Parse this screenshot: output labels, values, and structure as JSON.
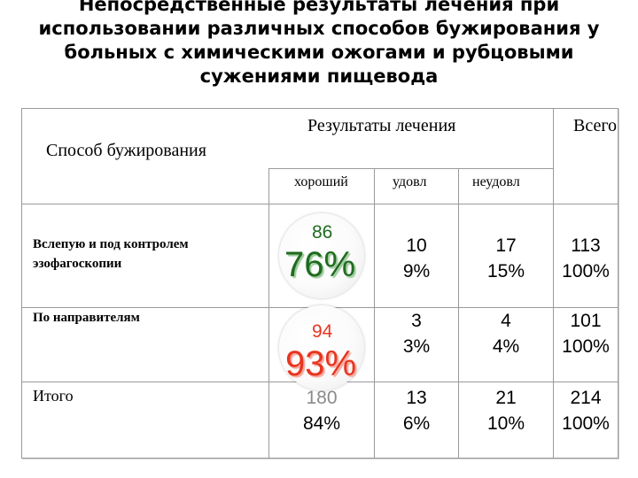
{
  "title": {
    "lines": [
      "Непосредственные результаты лечения при",
      "использовании различных способов бужирования у",
      "больных с химическими ожогами и рубцовыми",
      "сужениями пищевода"
    ]
  },
  "table": {
    "header": {
      "method": "Способ бужирования",
      "results": "Результаты лечения",
      "total": "Всего",
      "good": "хороший",
      "satisfactory": "удовл",
      "unsatisfactory": "неудовл"
    },
    "rows": [
      {
        "label": "Вслепую  и под контролем эзофагоскопии",
        "label_lines": [
          "Вслепую  и под контролем",
          "эзофагоскопии"
        ],
        "good_count": "86",
        "good_percent": "76%",
        "satisfactory_count": "10",
        "satisfactory_percent": "9%",
        "unsatisfactory_count": "17",
        "unsatisfactory_percent": "15%",
        "total_count": "113",
        "total_percent": "100%"
      },
      {
        "label": "По направителям",
        "good_count": "94",
        "good_percent": "93%",
        "satisfactory_count": "3",
        "satisfactory_percent": "3%",
        "unsatisfactory_count": "4",
        "unsatisfactory_percent": "4%",
        "total_count": "101",
        "total_percent": "100%"
      },
      {
        "label": "Итого",
        "good_count": "180",
        "good_percent": "84%",
        "satisfactory_count": "13",
        "satisfactory_percent": "6%",
        "unsatisfactory_count": "21",
        "unsatisfactory_percent": "10%",
        "total_count": "214",
        "total_percent": "100%"
      }
    ]
  },
  "colors": {
    "highlight_green": "#1f6b1f",
    "highlight_red": "#e8351f",
    "muted_gray": "#8a8a8a"
  }
}
